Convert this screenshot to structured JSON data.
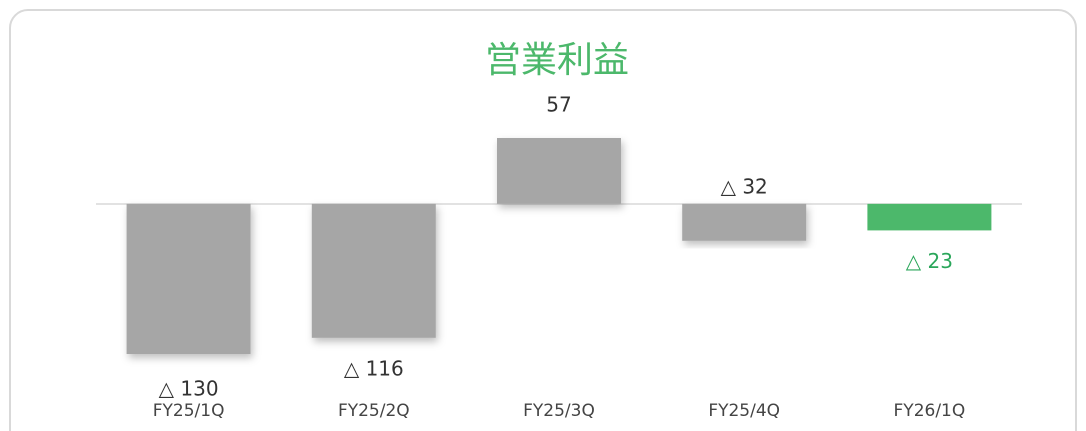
{
  "chart_data": {
    "type": "bar",
    "title": "営業利益",
    "categories": [
      "FY25/1Q",
      "FY25/2Q",
      "FY25/3Q",
      "FY25/4Q",
      "FY26/1Q"
    ],
    "values": [
      -130,
      -116,
      57,
      -32,
      -23
    ],
    "value_labels": [
      "△ 130",
      "△ 116",
      "57",
      "△ 32",
      "△ 23"
    ],
    "colors": [
      "#a6a6a6",
      "#a6a6a6",
      "#a6a6a6",
      "#a6a6a6",
      "#4cb86b"
    ]
  }
}
